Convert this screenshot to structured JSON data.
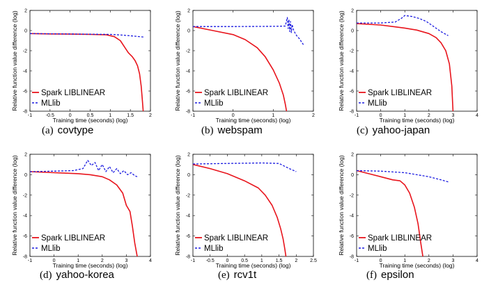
{
  "figure": {
    "legend": [
      "Spark LIBLINEAR",
      "MLlib"
    ],
    "xlabel": "Training time (seconds) (log)",
    "ylabel": "Relative function value difference (log)",
    "colors": {
      "spark": "#e8141c",
      "mllib": "#1c1ce0"
    }
  },
  "chart_data": [
    {
      "type": "line",
      "caption_label": "(a)",
      "caption": "covtype",
      "xlim": [
        -1,
        2
      ],
      "ylim": [
        -8,
        2
      ],
      "xticks": [
        "-1",
        "-0.5",
        "0",
        "0.5",
        "1",
        "1.5",
        "2"
      ],
      "yticks": [
        "2",
        "0",
        "-2",
        "-4",
        "-6",
        "-8"
      ],
      "series": [
        {
          "name": "Spark LIBLINEAR",
          "style": "solid",
          "color": "#e8141c",
          "x": [
            -1,
            -0.5,
            0,
            0.5,
            0.9,
            1.1,
            1.25,
            1.35,
            1.45,
            1.55,
            1.62,
            1.68,
            1.73,
            1.77,
            1.8,
            1.82
          ],
          "y": [
            -0.3,
            -0.33,
            -0.35,
            -0.38,
            -0.42,
            -0.6,
            -1.0,
            -1.6,
            -2.2,
            -2.6,
            -3.0,
            -3.5,
            -4.3,
            -5.5,
            -7.0,
            -8.0
          ]
        },
        {
          "name": "MLlib",
          "style": "dashed",
          "color": "#1c1ce0",
          "x": [
            -1,
            -0.5,
            0,
            0.5,
            1.0,
            1.3,
            1.6,
            1.85
          ],
          "y": [
            -0.3,
            -0.32,
            -0.34,
            -0.36,
            -0.38,
            -0.45,
            -0.55,
            -0.65
          ]
        }
      ]
    },
    {
      "type": "line",
      "caption_label": "(b)",
      "caption": "webspam",
      "xlim": [
        -1,
        2
      ],
      "ylim": [
        -8,
        2
      ],
      "xticks": [
        "-1",
        "0",
        "1",
        "2"
      ],
      "yticks": [
        "2",
        "0",
        "-2",
        "-4",
        "-6",
        "-8"
      ],
      "series": [
        {
          "name": "Spark LIBLINEAR",
          "style": "solid",
          "color": "#e8141c",
          "x": [
            -1,
            -0.5,
            0,
            0.3,
            0.6,
            0.8,
            1.0,
            1.15,
            1.25,
            1.3,
            1.33
          ],
          "y": [
            0.4,
            0.0,
            -0.4,
            -0.9,
            -1.7,
            -2.6,
            -3.9,
            -5.2,
            -6.4,
            -7.3,
            -8.0
          ]
        },
        {
          "name": "MLlib",
          "style": "dashed",
          "color": "#1c1ce0",
          "x": [
            -1,
            0,
            1.0,
            1.3,
            1.35,
            1.37,
            1.39,
            1.41,
            1.43,
            1.45,
            1.47,
            1.5,
            1.55,
            1.6,
            1.65,
            1.7,
            1.75
          ],
          "y": [
            0.4,
            0.4,
            0.42,
            0.45,
            1.3,
            0.2,
            1.1,
            -0.1,
            0.9,
            -0.2,
            0.6,
            0.1,
            -0.3,
            -0.6,
            -0.8,
            -1.1,
            -1.4
          ]
        }
      ]
    },
    {
      "type": "line",
      "caption_label": "(c)",
      "caption": "yahoo-japan",
      "xlim": [
        -1,
        4
      ],
      "ylim": [
        -8,
        2
      ],
      "xticks": [
        "-1",
        "0",
        "1",
        "2",
        "3",
        "4"
      ],
      "yticks": [
        "2",
        "0",
        "-2",
        "-4",
        "-6",
        "-8"
      ],
      "series": [
        {
          "name": "Spark LIBLINEAR",
          "style": "solid",
          "color": "#e8141c",
          "x": [
            -1,
            0,
            0.5,
            1.0,
            1.5,
            2.0,
            2.3,
            2.5,
            2.7,
            2.85,
            2.95,
            3.0
          ],
          "y": [
            0.7,
            0.55,
            0.4,
            0.25,
            0.05,
            -0.3,
            -0.7,
            -1.2,
            -2.0,
            -3.3,
            -5.5,
            -8.0
          ]
        },
        {
          "name": "MLlib",
          "style": "dashed",
          "color": "#1c1ce0",
          "x": [
            -1,
            0,
            0.6,
            0.85,
            1.0,
            1.3,
            1.6,
            1.9,
            2.2,
            2.5,
            2.8
          ],
          "y": [
            0.75,
            0.75,
            0.85,
            1.2,
            1.5,
            1.4,
            1.2,
            0.9,
            0.4,
            -0.1,
            -0.5
          ]
        }
      ]
    },
    {
      "type": "line",
      "caption_label": "(d)",
      "caption": "yahoo-korea",
      "xlim": [
        -1,
        4
      ],
      "ylim": [
        -8,
        2
      ],
      "xticks": [
        "-1",
        "0",
        "1",
        "2",
        "3",
        "4"
      ],
      "yticks": [
        "2",
        "0",
        "-2",
        "-4",
        "-6",
        "-8"
      ],
      "series": [
        {
          "name": "Spark LIBLINEAR",
          "style": "solid",
          "color": "#e8141c",
          "x": [
            -1,
            0,
            0.5,
            1.0,
            1.5,
            2.0,
            2.3,
            2.6,
            2.85,
            3.0,
            3.15,
            3.25,
            3.35,
            3.45
          ],
          "y": [
            0.3,
            0.2,
            0.15,
            0.1,
            0.0,
            -0.2,
            -0.5,
            -1.0,
            -1.8,
            -3.0,
            -3.6,
            -5.0,
            -6.7,
            -8.0
          ]
        },
        {
          "name": "MLlib",
          "style": "dashed",
          "color": "#1c1ce0",
          "x": [
            -1,
            0,
            0.8,
            1.2,
            1.4,
            1.55,
            1.7,
            1.85,
            2.0,
            2.15,
            2.3,
            2.45,
            2.6,
            2.75,
            2.9,
            3.05,
            3.2,
            3.35,
            3.45
          ],
          "y": [
            0.3,
            0.35,
            0.4,
            0.6,
            1.4,
            0.9,
            1.2,
            0.4,
            1.0,
            0.3,
            0.8,
            0.2,
            0.6,
            0.1,
            0.4,
            0.0,
            0.2,
            -0.1,
            -0.2
          ]
        }
      ]
    },
    {
      "type": "line",
      "caption_label": "(e)",
      "caption": "rcv1t",
      "xlim": [
        -1,
        2.5
      ],
      "ylim": [
        -8,
        2
      ],
      "xticks": [
        "-1",
        "-0.5",
        "0",
        "0.5",
        "1",
        "1.5",
        "2",
        "2.5"
      ],
      "yticks": [
        "2",
        "0",
        "-2",
        "-4",
        "-6",
        "-8"
      ],
      "series": [
        {
          "name": "Spark LIBLINEAR",
          "style": "solid",
          "color": "#e8141c",
          "x": [
            -1,
            -0.5,
            0,
            0.5,
            0.9,
            1.1,
            1.3,
            1.45,
            1.55,
            1.62,
            1.67,
            1.7
          ],
          "y": [
            1.0,
            0.6,
            0.1,
            -0.6,
            -1.3,
            -2.0,
            -3.0,
            -4.2,
            -5.3,
            -6.3,
            -7.3,
            -8.0
          ]
        },
        {
          "name": "MLlib",
          "style": "dashed",
          "color": "#1c1ce0",
          "x": [
            -1,
            0,
            1.0,
            1.5,
            1.8,
            2.0
          ],
          "y": [
            1.05,
            1.1,
            1.15,
            1.1,
            0.6,
            0.3
          ]
        }
      ]
    },
    {
      "type": "line",
      "caption_label": "(f)",
      "caption": "epsilon",
      "xlim": [
        -1,
        4
      ],
      "ylim": [
        -8,
        2
      ],
      "xticks": [
        "-1",
        "0",
        "1",
        "2",
        "3",
        "4"
      ],
      "yticks": [
        "2",
        "0",
        "-2",
        "-4",
        "-6",
        "-8"
      ],
      "series": [
        {
          "name": "Spark LIBLINEAR",
          "style": "solid",
          "color": "#e8141c",
          "x": [
            -1,
            -0.5,
            0,
            0.5,
            0.8,
            1.0,
            1.2,
            1.4,
            1.55,
            1.65,
            1.75
          ],
          "y": [
            0.4,
            0.1,
            -0.2,
            -0.5,
            -0.6,
            -1.0,
            -1.8,
            -3.2,
            -4.8,
            -6.5,
            -8.0
          ]
        },
        {
          "name": "MLlib",
          "style": "dashed",
          "color": "#1c1ce0",
          "x": [
            -1,
            0,
            1.0,
            1.5,
            2.0,
            2.5,
            2.8
          ],
          "y": [
            0.4,
            0.35,
            0.2,
            0.0,
            -0.2,
            -0.5,
            -0.7
          ]
        }
      ]
    }
  ]
}
